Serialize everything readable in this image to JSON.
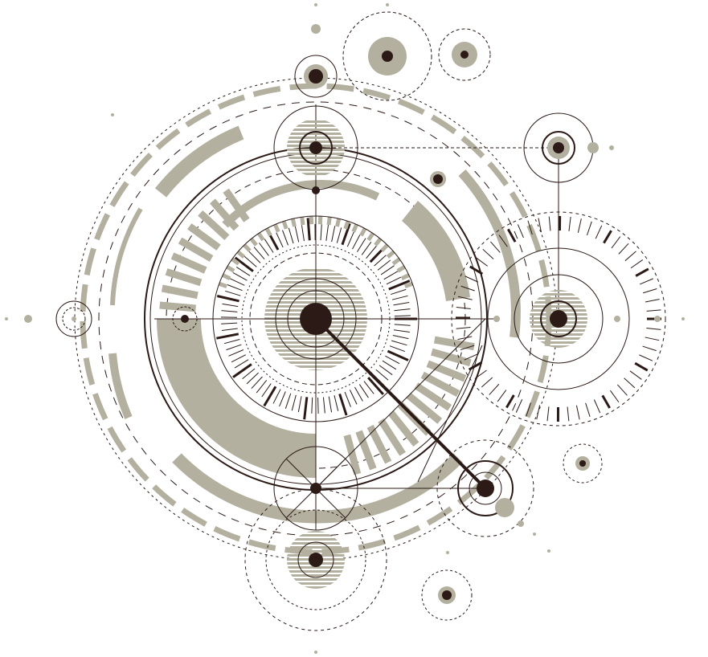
{
  "colors": {
    "background": "#ffffff",
    "ink": "#2b1a16",
    "tan": "#b3b09f",
    "tan_light": "#c5c2b3"
  }
}
